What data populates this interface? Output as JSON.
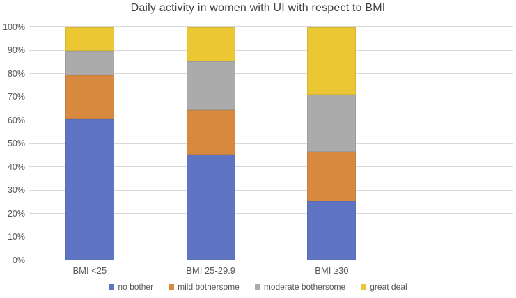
{
  "chart_data": {
    "type": "bar",
    "stacked": true,
    "title": "Daily activity in women with UI with respect to BMI",
    "categories": [
      "BMI <25",
      "BMI 25-29.9",
      "BMI ≥30"
    ],
    "series": [
      {
        "name": "no bother",
        "color": "#6074C4",
        "values": [
          60.5,
          45.5,
          25.5
        ]
      },
      {
        "name": "mild bothersome",
        "color": "#D78A3F",
        "values": [
          19.0,
          19.0,
          21.0
        ]
      },
      {
        "name": "moderate bothersome",
        "color": "#ABABAB",
        "values": [
          10.5,
          21.0,
          24.5
        ]
      },
      {
        "name": "great deal",
        "color": "#EBC733",
        "values": [
          10.0,
          14.5,
          29.0
        ]
      }
    ],
    "xlabel": "",
    "ylabel": "",
    "ylim": [
      0,
      100
    ],
    "y_ticks": [
      "0%",
      "10%",
      "20%",
      "30%",
      "40%",
      "50%",
      "60%",
      "70%",
      "80%",
      "90%",
      "100%"
    ],
    "grid": true,
    "legend_position": "bottom"
  },
  "colors": {
    "background": "#FFFFFF",
    "title_text": "#3F3F3F",
    "axis_text": "#595959",
    "gridline": "#D9D9D9",
    "axis_line": "#BFBFBF"
  }
}
